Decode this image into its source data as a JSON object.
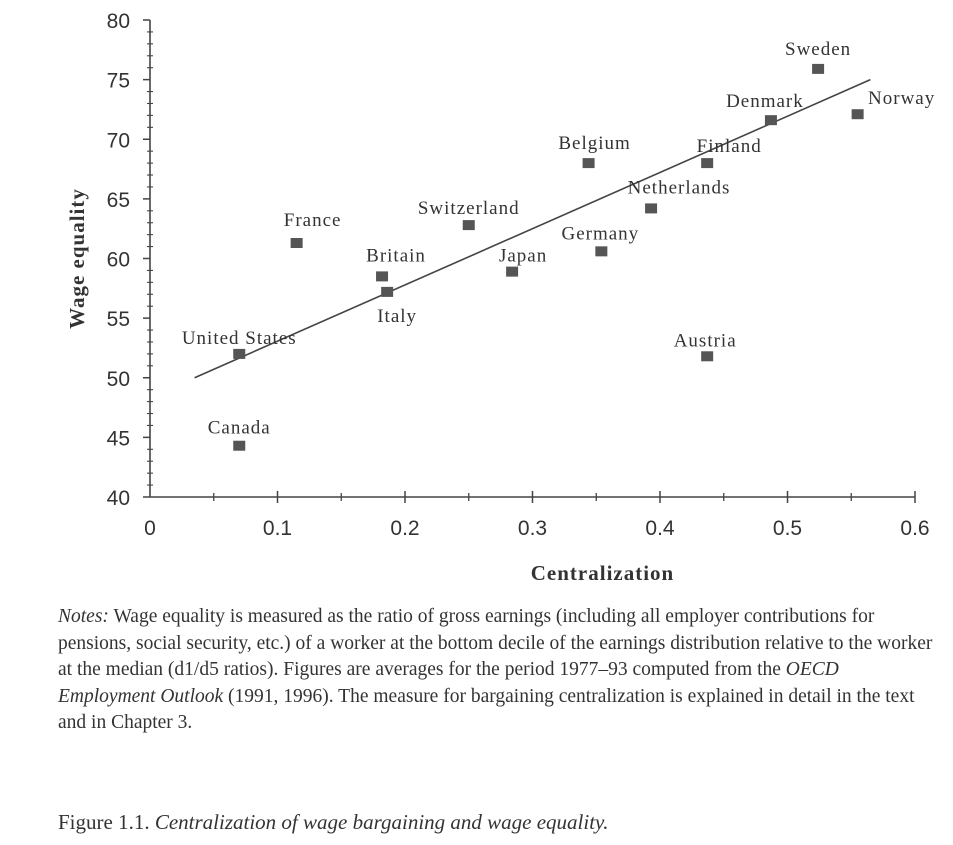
{
  "chart_data": {
    "type": "scatter",
    "xlabel": "Centralization",
    "ylabel": "Wage equality",
    "xlim": [
      0,
      0.6
    ],
    "ylim": [
      40,
      80
    ],
    "xticks": [
      "0",
      "0.1",
      "0.2",
      "0.3",
      "0.4",
      "0.5",
      "0.6"
    ],
    "yticks": [
      "40",
      "45",
      "50",
      "55",
      "60",
      "65",
      "70",
      "75",
      "80"
    ],
    "grid": false,
    "points": [
      {
        "label": "United States",
        "x": 0.07,
        "y": 52
      },
      {
        "label": "Canada",
        "x": 0.07,
        "y": 44.3
      },
      {
        "label": "France",
        "x": 0.115,
        "y": 61.3
      },
      {
        "label": "Britain",
        "x": 0.182,
        "y": 58.5
      },
      {
        "label": "Italy",
        "x": 0.186,
        "y": 57.2
      },
      {
        "label": "Switzerland",
        "x": 0.25,
        "y": 62.8
      },
      {
        "label": "Japan",
        "x": 0.284,
        "y": 58.9
      },
      {
        "label": "Belgium",
        "x": 0.344,
        "y": 68
      },
      {
        "label": "Germany",
        "x": 0.354,
        "y": 60.6
      },
      {
        "label": "Netherlands",
        "x": 0.393,
        "y": 64.2
      },
      {
        "label": "Finland",
        "x": 0.437,
        "y": 68
      },
      {
        "label": "Austria",
        "x": 0.437,
        "y": 51.8
      },
      {
        "label": "Denmark",
        "x": 0.487,
        "y": 71.6
      },
      {
        "label": "Sweden",
        "x": 0.524,
        "y": 75.9
      },
      {
        "label": "Norway",
        "x": 0.555,
        "y": 72.1
      }
    ],
    "trendline": {
      "x": [
        0.035,
        0.565
      ],
      "y": [
        50,
        75
      ]
    }
  },
  "notes": {
    "lead": "Notes:",
    "text_before": " Wage equality is measured as the ratio of gross earnings (including all employer contributions for pensions, social security, etc.) of a worker at the bottom decile of the earnings distribution relative to the worker at the median (d1/d5 ratios). Figures are averages for the period 1977–93 computed from the ",
    "source_title": "OECD Employment Outlook",
    "text_after": " (1991, 1996). The measure for bargaining centralization is explained in detail in the text and in Chapter 3."
  },
  "caption": {
    "label": "Figure 1.1.",
    "title": "Centralization of wage bargaining and wage equality."
  }
}
